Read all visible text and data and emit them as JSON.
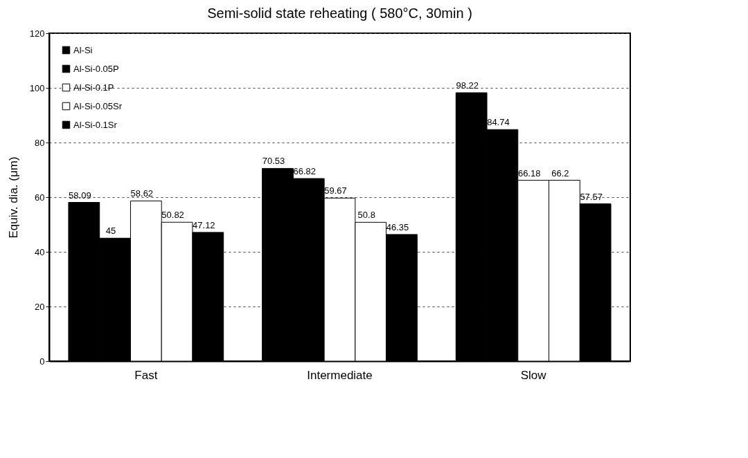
{
  "chart_data": {
    "type": "bar",
    "title": "Semi-solid state reheating ( 580°C, 30min )",
    "ylabel": "Equiv. dia. (μm)",
    "categories": [
      "Fast",
      "Intermediate",
      "Slow"
    ],
    "series": [
      {
        "name": "Al-Si",
        "color": "#000000",
        "values": [
          58.09,
          70.53,
          98.22
        ]
      },
      {
        "name": "Al-Si-0.05P",
        "color": "#000000",
        "values": [
          45,
          66.82,
          84.74
        ]
      },
      {
        "name": "Al-Si-0.1P",
        "color": "#ffffff",
        "values": [
          58.62,
          59.67,
          66.18
        ]
      },
      {
        "name": "Al-Si-0.05Sr",
        "color": "#ffffff",
        "values": [
          50.82,
          50.8,
          66.2
        ]
      },
      {
        "name": "Al-Si-0.1Sr",
        "color": "#000000",
        "values": [
          47.12,
          46.35,
          57.57
        ]
      }
    ],
    "ylim": [
      0,
      120
    ],
    "yticks": [
      0,
      20,
      40,
      60,
      80,
      100,
      120
    ],
    "grid": "y",
    "legend": "top left",
    "data_labels": true
  }
}
